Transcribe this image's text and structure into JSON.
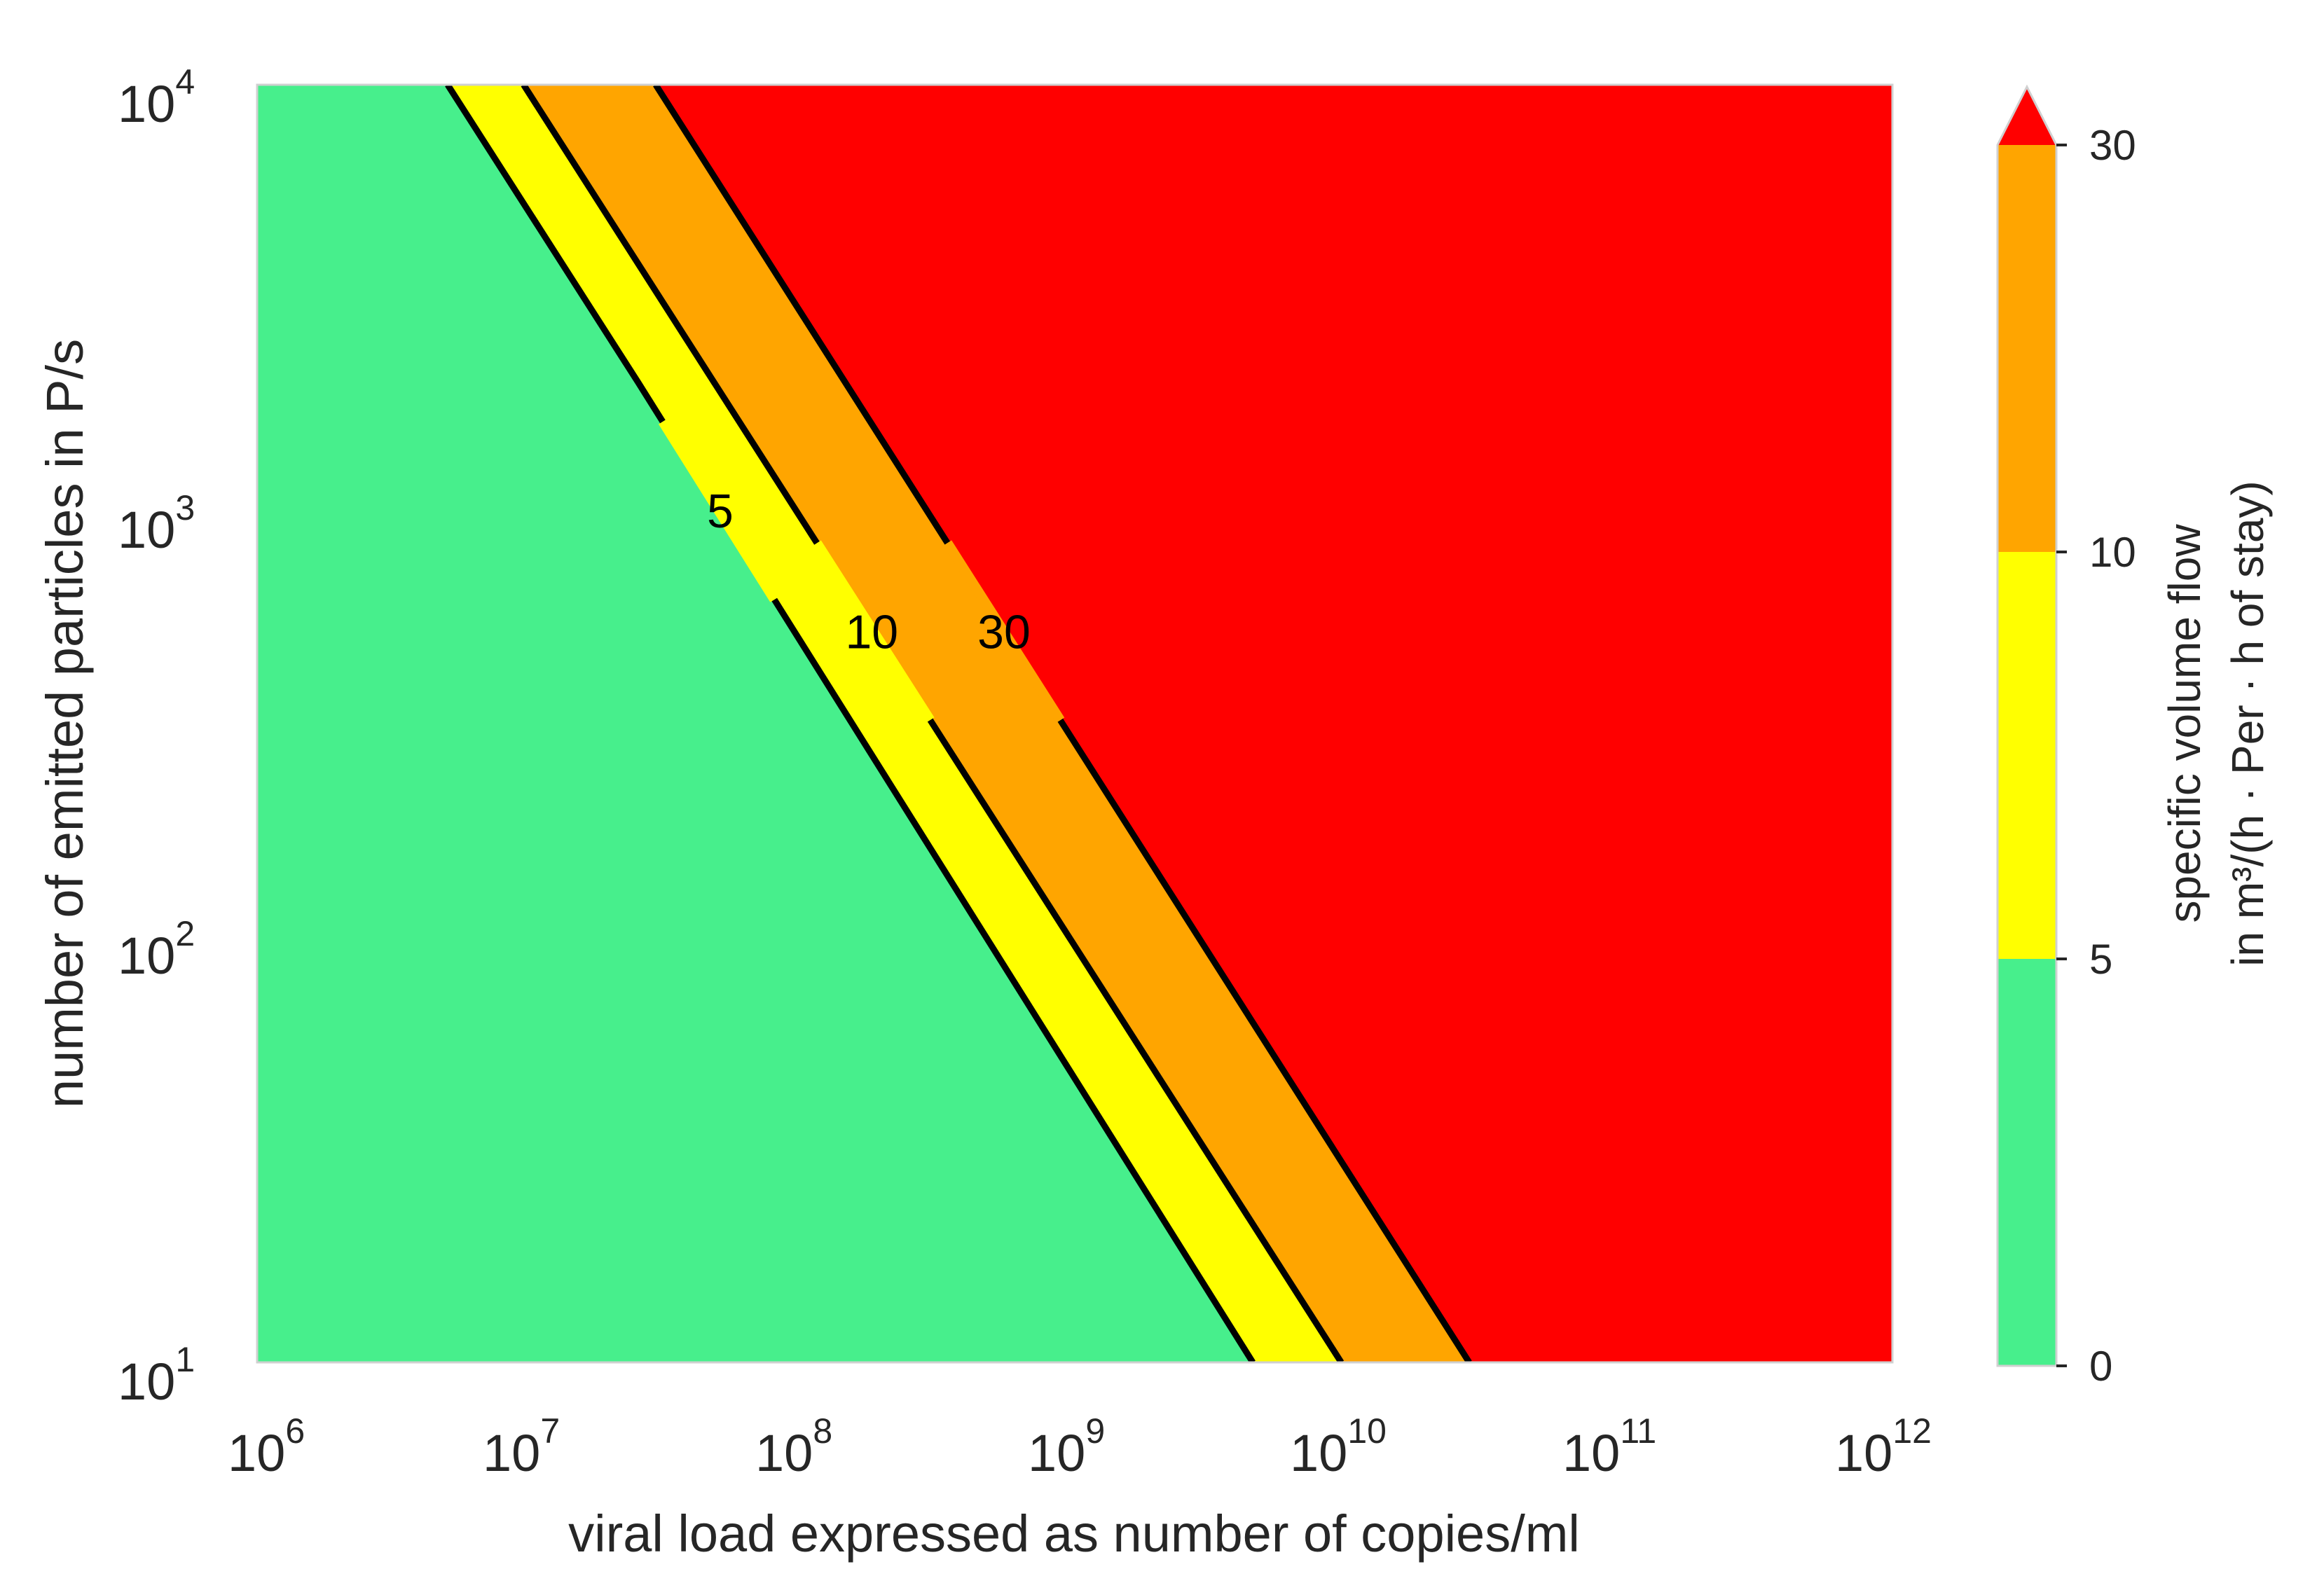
{
  "chart_data": {
    "type": "contourf",
    "xscale": "log",
    "yscale": "log",
    "xlim": [
      1000000,
      1000000000000
    ],
    "ylim": [
      10,
      10000
    ],
    "xlabel": "viral load expressed as number of copies/ml",
    "ylabel": "number of emitted particles in P/s",
    "x_ticks": [
      {
        "value": 1000000,
        "base": "10",
        "exp": "6"
      },
      {
        "value": 10000000,
        "base": "10",
        "exp": "7"
      },
      {
        "value": 100000000,
        "base": "10",
        "exp": "8"
      },
      {
        "value": 1000000000,
        "base": "10",
        "exp": "9"
      },
      {
        "value": 10000000000,
        "base": "10",
        "exp": "10"
      },
      {
        "value": 100000000000,
        "base": "10",
        "exp": "11"
      },
      {
        "value": 1000000000000,
        "base": "10",
        "exp": "12"
      }
    ],
    "y_ticks": [
      {
        "value": 10,
        "base": "10",
        "exp": "1"
      },
      {
        "value": 100,
        "base": "10",
        "exp": "2"
      },
      {
        "value": 1000,
        "base": "10",
        "exp": "3"
      },
      {
        "value": 10000,
        "base": "10",
        "exp": "4"
      }
    ],
    "levels": [
      0,
      5,
      10,
      30
    ],
    "level_colors": {
      "0-5": "#47ef8c",
      "5-10": "#ffff00",
      "10-30": "#ffa500",
      "30+": "#ff0000"
    },
    "contours": [
      {
        "level": 5,
        "label": "5",
        "points": [
          [
            5000000,
            10000
          ],
          [
            25000000,
            2000
          ],
          [
            4500000000,
            10
          ]
        ],
        "label_at": [
          50000000,
          1000
        ]
      },
      {
        "level": 10,
        "label": "10",
        "points": [
          [
            9500000,
            10000
          ],
          [
            9500000000,
            10
          ]
        ],
        "label_at": [
          180000000,
          520
        ]
      },
      {
        "level": 30,
        "label": "30",
        "points": [
          [
            29000000,
            10000
          ],
          [
            28000000000,
            10
          ]
        ],
        "label_at": [
          550000000,
          520
        ]
      }
    ],
    "colorbar": {
      "label_line1": "specific volume flow",
      "label_line2": "in m³/(h · Per · h of stay)",
      "ticks": [
        "0",
        "5",
        "10",
        "30"
      ],
      "extend": "max"
    }
  }
}
